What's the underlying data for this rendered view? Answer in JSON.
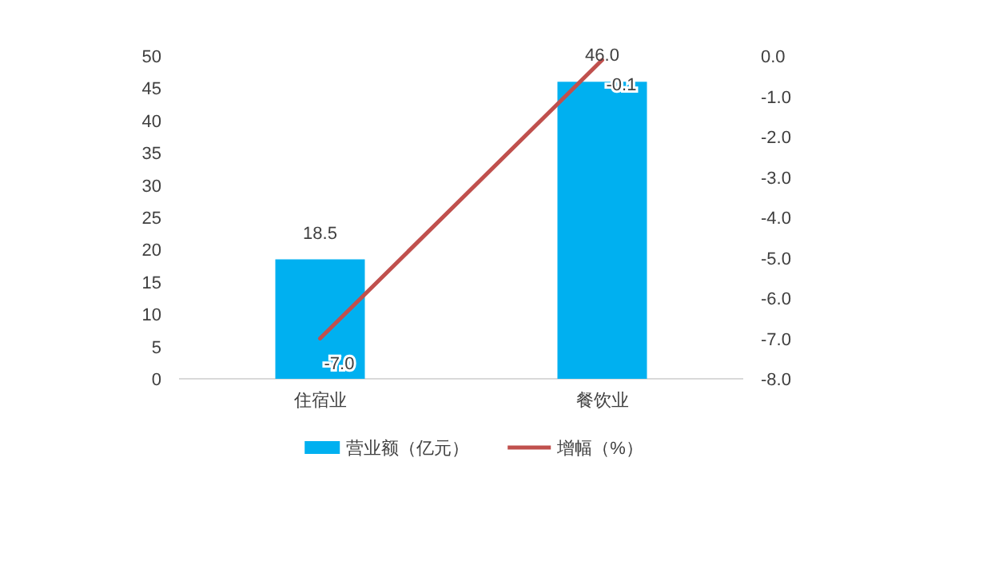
{
  "chart_data": {
    "type": "bar",
    "categories": [
      "住宿业",
      "餐饮业"
    ],
    "series": [
      {
        "name": "营业额（亿元）",
        "color": "#00b0f0",
        "values": [
          18.5,
          46.0
        ],
        "value_labels": [
          "18.5",
          "46.0"
        ]
      },
      {
        "name": "增幅（%）",
        "type": "line",
        "axis": "y2",
        "color": "#c0504d",
        "values": [
          -7.0,
          -0.1
        ],
        "value_labels": [
          "-7.0",
          "-0.1"
        ]
      }
    ],
    "ylim": [
      0,
      50
    ],
    "yticks": [
      0,
      5,
      10,
      15,
      20,
      25,
      30,
      35,
      40,
      45,
      50
    ],
    "y2lim": [
      -8,
      0
    ],
    "y2ticks": [
      {
        "value": 0,
        "label": "0.0"
      },
      {
        "value": -1,
        "label": "-1.0"
      },
      {
        "value": -2,
        "label": "-2.0"
      },
      {
        "value": -3,
        "label": "-3.0"
      },
      {
        "value": -4,
        "label": "-4.0"
      },
      {
        "value": -5,
        "label": "-5.0"
      },
      {
        "value": -6,
        "label": "-6.0"
      },
      {
        "value": -7,
        "label": "-7.0"
      },
      {
        "value": -8,
        "label": "-8.0"
      }
    ],
    "legend": "bottom",
    "grid": false
  }
}
